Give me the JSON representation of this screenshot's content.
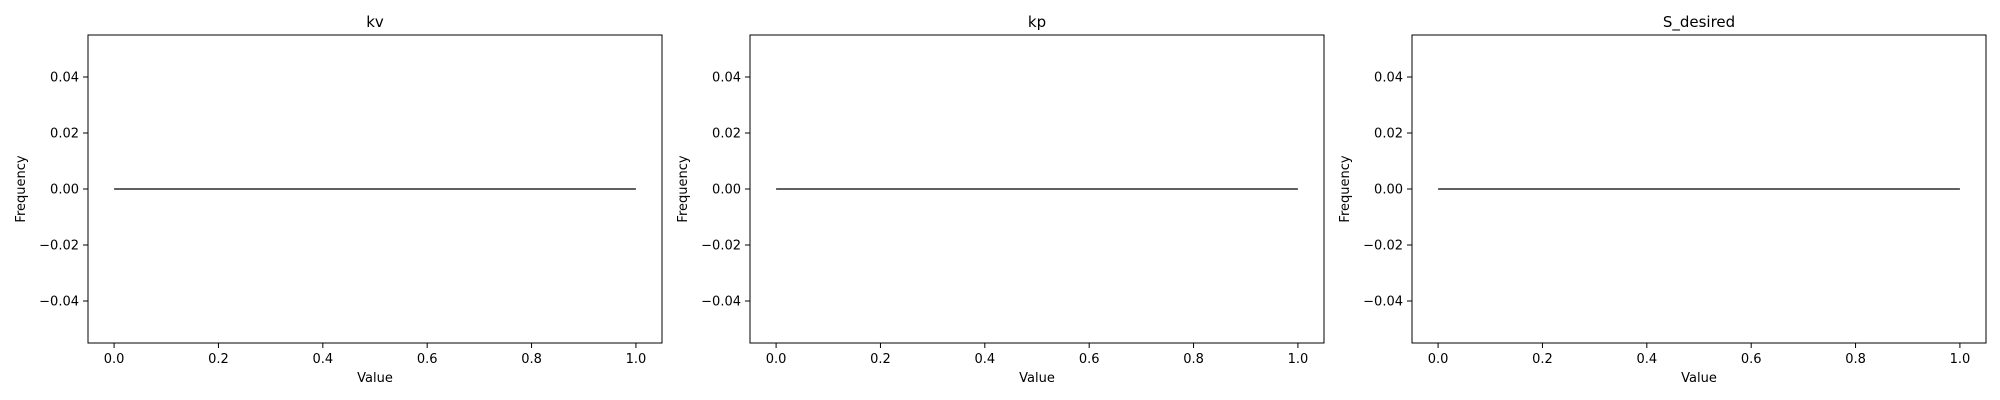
{
  "chart_data": [
    {
      "type": "line",
      "title": "kv",
      "xlabel": "Value",
      "ylabel": "Frequency",
      "xlim": [
        -0.05,
        1.05
      ],
      "ylim": [
        -0.055,
        0.055
      ],
      "xticks": [
        0.0,
        0.2,
        0.4,
        0.6,
        0.8,
        1.0
      ],
      "xtick_labels": [
        "0.0",
        "0.2",
        "0.4",
        "0.6",
        "0.8",
        "1.0"
      ],
      "yticks": [
        0.04,
        0.02,
        0.0,
        -0.02,
        -0.04
      ],
      "ytick_labels": [
        "0.04",
        "0.02",
        "0.00",
        "−0.02",
        "−0.04"
      ],
      "series": [
        {
          "x": [
            0.0,
            1.0
          ],
          "y": [
            0.0,
            0.0
          ],
          "color": "#000000"
        }
      ],
      "grid": false
    },
    {
      "type": "line",
      "title": "kp",
      "xlabel": "Value",
      "ylabel": "Frequency",
      "xlim": [
        -0.05,
        1.05
      ],
      "ylim": [
        -0.055,
        0.055
      ],
      "xticks": [
        0.0,
        0.2,
        0.4,
        0.6,
        0.8,
        1.0
      ],
      "xtick_labels": [
        "0.0",
        "0.2",
        "0.4",
        "0.6",
        "0.8",
        "1.0"
      ],
      "yticks": [
        0.04,
        0.02,
        0.0,
        -0.02,
        -0.04
      ],
      "ytick_labels": [
        "0.04",
        "0.02",
        "0.00",
        "−0.02",
        "−0.04"
      ],
      "series": [
        {
          "x": [
            0.0,
            1.0
          ],
          "y": [
            0.0,
            0.0
          ],
          "color": "#000000"
        }
      ],
      "grid": false
    },
    {
      "type": "line",
      "title": "S_desired",
      "xlabel": "Value",
      "ylabel": "Frequency",
      "xlim": [
        -0.05,
        1.05
      ],
      "ylim": [
        -0.055,
        0.055
      ],
      "xticks": [
        0.0,
        0.2,
        0.4,
        0.6,
        0.8,
        1.0
      ],
      "xtick_labels": [
        "0.0",
        "0.2",
        "0.4",
        "0.6",
        "0.8",
        "1.0"
      ],
      "yticks": [
        0.04,
        0.02,
        0.0,
        -0.02,
        -0.04
      ],
      "ytick_labels": [
        "0.04",
        "0.02",
        "0.00",
        "−0.02",
        "−0.04"
      ],
      "series": [
        {
          "x": [
            0.0,
            1.0
          ],
          "y": [
            0.0,
            0.0
          ],
          "color": "#000000"
        }
      ],
      "grid": false
    }
  ]
}
